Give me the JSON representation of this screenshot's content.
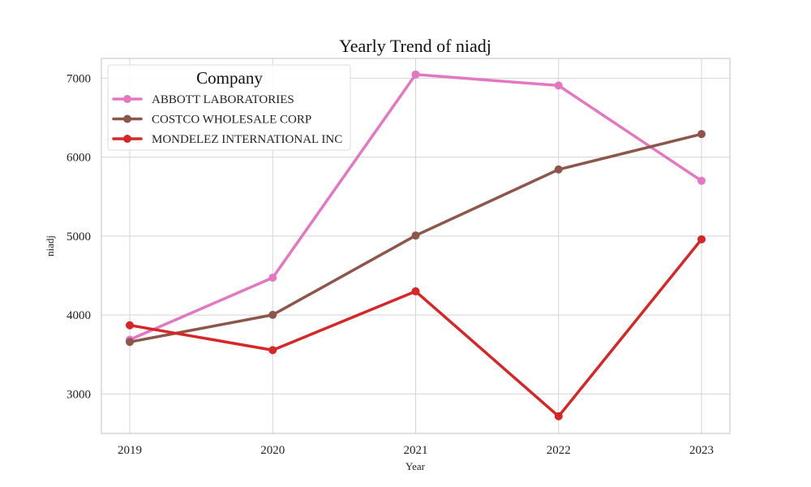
{
  "chart_data": {
    "type": "line",
    "title": "Yearly Trend of niadj",
    "xlabel": "Year",
    "ylabel": "niadj",
    "x": [
      "2019",
      "2020",
      "2021",
      "2022",
      "2023"
    ],
    "yticks": [
      3000,
      4000,
      5000,
      6000,
      7000
    ],
    "ylim": [
      2500,
      7250
    ],
    "grid": true,
    "legend": {
      "title": "Company",
      "placement": "top-left"
    },
    "series": [
      {
        "name": "ABBOTT LABORATORIES",
        "color": "#e377c2",
        "values": [
          3687,
          4473,
          7046,
          6907,
          5700
        ]
      },
      {
        "name": "COSTCO WHOLESALE CORP",
        "color": "#8c564b",
        "values": [
          3659,
          4002,
          5007,
          5844,
          6292
        ]
      },
      {
        "name": "MONDELEZ INTERNATIONAL INC",
        "color": "#d62728",
        "values": [
          3870,
          3555,
          4300,
          2717,
          4959
        ]
      }
    ]
  }
}
